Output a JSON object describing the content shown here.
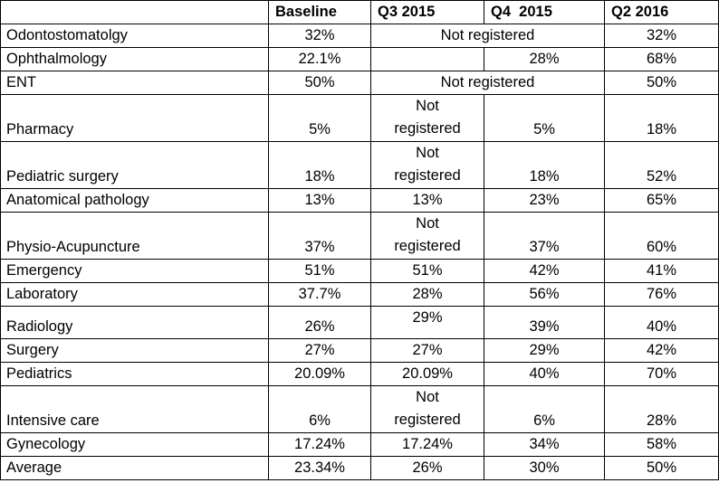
{
  "table": {
    "headers": {
      "blank": "",
      "baseline": "Baseline",
      "q3_2015": "Q3 2015",
      "q4_2015": "Q4  2015",
      "q2_2016": "Q2 2016"
    },
    "not_registered": "Not registered",
    "not": "Not",
    "registered": "registered",
    "rows": {
      "odonto": {
        "name": "Odontostomatolgy",
        "baseline": "32%",
        "q2_2016": "32%"
      },
      "ophthalmo": {
        "name": "Ophthalmology",
        "baseline": "22.1%",
        "q3_2015": "",
        "q4_2015": "28%",
        "q2_2016": "68%"
      },
      "ent": {
        "name": "ENT",
        "baseline": "50%",
        "q2_2016": "50%"
      },
      "pharmacy": {
        "name": "Pharmacy",
        "baseline": "5%",
        "q4_2015": "5%",
        "q2_2016": "18%"
      },
      "pedsurg": {
        "name": "Pediatric surgery",
        "baseline": "18%",
        "q4_2015": "18%",
        "q2_2016": "52%"
      },
      "anatpath": {
        "name": "Anatomical pathology",
        "baseline": "13%",
        "q3_2015": "13%",
        "q4_2015": "23%",
        "q2_2016": "65%"
      },
      "physio": {
        "name": "Physio-Acupuncture",
        "baseline": "37%",
        "q4_2015": "37%",
        "q2_2016": "60%"
      },
      "emergency": {
        "name": "Emergency",
        "baseline": "51%",
        "q3_2015": "51%",
        "q4_2015": "42%",
        "q2_2016": "41%"
      },
      "lab": {
        "name": "Laboratory",
        "baseline": "37.7%",
        "q3_2015": "28%",
        "q4_2015": "56%",
        "q2_2016": "76%"
      },
      "radiology": {
        "name": "Radiology",
        "baseline": "26%",
        "q3_2015": "29%",
        "q4_2015": "39%",
        "q2_2016": "40%"
      },
      "surgery": {
        "name": "Surgery",
        "baseline": "27%",
        "q3_2015": "27%",
        "q4_2015": "29%",
        "q2_2016": "42%"
      },
      "pediatrics": {
        "name": "Pediatrics",
        "baseline": "20.09%",
        "q3_2015": "20.09%",
        "q4_2015": "40%",
        "q2_2016": "70%"
      },
      "icu": {
        "name": "Intensive care",
        "baseline": "6%",
        "q4_2015": "6%",
        "q2_2016": "28%"
      },
      "gyneco": {
        "name": "Gynecology",
        "baseline": "17.24%",
        "q3_2015": "17.24%",
        "q4_2015": "34%",
        "q2_2016": "58%"
      },
      "average": {
        "name": "Average",
        "baseline": "23.34%",
        "q3_2015": "26%",
        "q4_2015": "30%",
        "q2_2016": "50%"
      }
    }
  }
}
